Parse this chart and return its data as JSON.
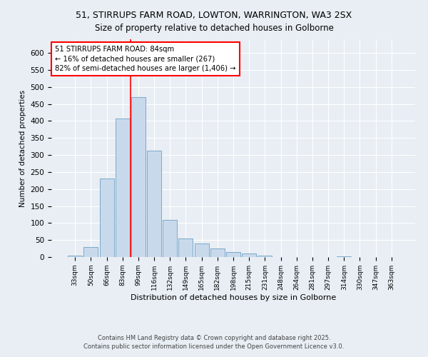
{
  "title_line1": "51, STIRRUPS FARM ROAD, LOWTON, WARRINGTON, WA3 2SX",
  "title_line2": "Size of property relative to detached houses in Golborne",
  "xlabel": "Distribution of detached houses by size in Golborne",
  "ylabel": "Number of detached properties",
  "categories": [
    "33sqm",
    "50sqm",
    "66sqm",
    "83sqm",
    "99sqm",
    "116sqm",
    "132sqm",
    "149sqm",
    "165sqm",
    "182sqm",
    "198sqm",
    "215sqm",
    "231sqm",
    "248sqm",
    "264sqm",
    "281sqm",
    "297sqm",
    "314sqm",
    "330sqm",
    "347sqm",
    "363sqm"
  ],
  "values": [
    5,
    30,
    230,
    408,
    470,
    313,
    110,
    55,
    40,
    25,
    14,
    11,
    5,
    0,
    0,
    0,
    0,
    3,
    0,
    0,
    0
  ],
  "bar_color": "#c9d9ec",
  "bar_edge_color": "#7aaac8",
  "redline_x": 3.5,
  "annotation_text": "51 STIRRUPS FARM ROAD: 84sqm\n← 16% of detached houses are smaller (267)\n82% of semi-detached houses are larger (1,406) →",
  "annotation_box_color": "white",
  "annotation_box_edge": "red",
  "redline_color": "red",
  "ylim": [
    0,
    640
  ],
  "yticks": [
    0,
    50,
    100,
    150,
    200,
    250,
    300,
    350,
    400,
    450,
    500,
    550,
    600
  ],
  "footer_line1": "Contains HM Land Registry data © Crown copyright and database right 2025.",
  "footer_line2": "Contains public sector information licensed under the Open Government Licence v3.0.",
  "bg_color": "#e8eef4",
  "plot_bg_color": "#e8eef4"
}
